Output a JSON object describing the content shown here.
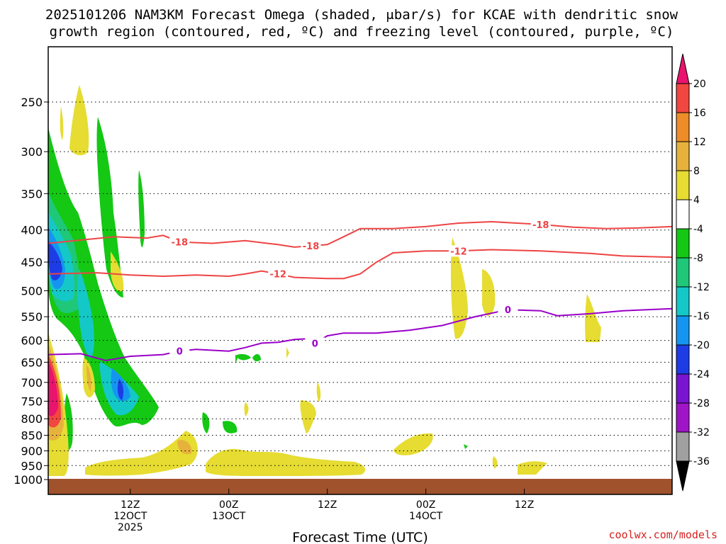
{
  "title": {
    "line1": "2025101206 NAM3KM Forecast Omega (shaded, μbar/s) for KCAE with dendritic snow",
    "line2": "growth region (contoured, red, ºC) and freezing level (contoured, purple, ºC)"
  },
  "credit": "coolwx.com/models",
  "colors": {
    "dendritic": "#ee4444",
    "freezing": "#9a00c8",
    "ground": "#a0522d"
  },
  "chart_data": {
    "type": "heatmap",
    "title": "2025101206 NAM3KM Forecast Omega (shaded, μbar/s) for KCAE with dendritic snow growth region (contoured, red, ºC) and freezing level (contoured, purple, ºC)",
    "xlabel": "Forecast Time (UTC)",
    "ylabel": "",
    "xlim_hours": [
      -4,
      72
    ],
    "ylim_hPa": [
      200,
      1010
    ],
    "y_scale": "log-pressure",
    "yticks": [
      250,
      300,
      350,
      400,
      450,
      500,
      550,
      600,
      650,
      700,
      750,
      800,
      850,
      900,
      950,
      1000
    ],
    "xticks": [
      {
        "hour": 6,
        "labels": [
          "12Z",
          "12OCT",
          "2025"
        ]
      },
      {
        "hour": 18,
        "labels": [
          "00Z",
          "13OCT"
        ]
      },
      {
        "hour": 30,
        "labels": [
          "12Z"
        ]
      },
      {
        "hour": 42,
        "labels": [
          "00Z",
          "14OCT"
        ]
      },
      {
        "hour": 54,
        "labels": [
          "12Z"
        ]
      }
    ],
    "colorbar": {
      "levels": [
        20,
        16,
        12,
        8,
        4,
        -4,
        -8,
        -12,
        -16,
        -20,
        -24,
        -28,
        -32,
        -36
      ],
      "colors": [
        "#e8146e",
        "#f24640",
        "#ee8c28",
        "#e6b23c",
        "#e6dc32",
        "#ffffff",
        "#14c814",
        "#1ec878",
        "#14c8c8",
        "#1496f0",
        "#1e3ce6",
        "#7814d2",
        "#a014c8",
        "#a0a0a0",
        "#000000"
      ]
    },
    "contours": [
      {
        "name": "dendritic_top",
        "value": -18,
        "label": "-18",
        "color": "#ee4444",
        "points": [
          [
            -4,
            420
          ],
          [
            0,
            415
          ],
          [
            4,
            410
          ],
          [
            8,
            412
          ],
          [
            10,
            408
          ],
          [
            12,
            418
          ],
          [
            16,
            420
          ],
          [
            20,
            416
          ],
          [
            24,
            422
          ],
          [
            26,
            426
          ],
          [
            30,
            422
          ],
          [
            32,
            410
          ],
          [
            34,
            398
          ],
          [
            38,
            398
          ],
          [
            42,
            395
          ],
          [
            46,
            390
          ],
          [
            50,
            388
          ],
          [
            56,
            392
          ],
          [
            60,
            396
          ],
          [
            64,
            398
          ],
          [
            68,
            397
          ],
          [
            72,
            395
          ]
        ]
      },
      {
        "name": "dendritic_bottom",
        "value": -12,
        "label": "-12",
        "color": "#ee4444",
        "points": [
          [
            -4,
            470
          ],
          [
            2,
            468
          ],
          [
            6,
            472
          ],
          [
            10,
            474
          ],
          [
            14,
            472
          ],
          [
            18,
            474
          ],
          [
            20,
            470
          ],
          [
            22,
            465
          ],
          [
            24,
            470
          ],
          [
            26,
            476
          ],
          [
            30,
            478
          ],
          [
            32,
            478
          ],
          [
            34,
            470
          ],
          [
            36,
            450
          ],
          [
            38,
            435
          ],
          [
            42,
            432
          ],
          [
            46,
            432
          ],
          [
            50,
            430
          ],
          [
            56,
            432
          ],
          [
            62,
            436
          ],
          [
            66,
            440
          ],
          [
            72,
            442
          ]
        ]
      },
      {
        "name": "freezing_level",
        "value": 0,
        "label": "0",
        "color": "#9a00c8",
        "points": [
          [
            -4,
            632
          ],
          [
            0,
            630
          ],
          [
            3,
            646
          ],
          [
            6,
            636
          ],
          [
            10,
            632
          ],
          [
            12,
            624
          ],
          [
            14,
            620
          ],
          [
            18,
            624
          ],
          [
            20,
            616
          ],
          [
            22,
            606
          ],
          [
            24,
            604
          ],
          [
            26,
            598
          ],
          [
            28,
            596
          ],
          [
            28.5,
            606
          ],
          [
            30,
            590
          ],
          [
            32,
            584
          ],
          [
            36,
            584
          ],
          [
            40,
            578
          ],
          [
            44,
            568
          ],
          [
            48,
            550
          ],
          [
            52,
            536
          ],
          [
            56,
            538
          ],
          [
            58,
            548
          ],
          [
            62,
            544
          ],
          [
            66,
            538
          ],
          [
            72,
            534
          ]
        ]
      }
    ],
    "shaded_regions": [
      {
        "level": -28,
        "desc": "strong ascent core near 430-460 hPa and 700-750 hPa early in period"
      },
      {
        "level": 20,
        "desc": "strong descent max near 700 hPa at start of period"
      },
      {
        "level": 4,
        "desc": "weak descent patches near 250-300 hPa, 450-550 hPa, and 900-950 hPa"
      }
    ]
  }
}
